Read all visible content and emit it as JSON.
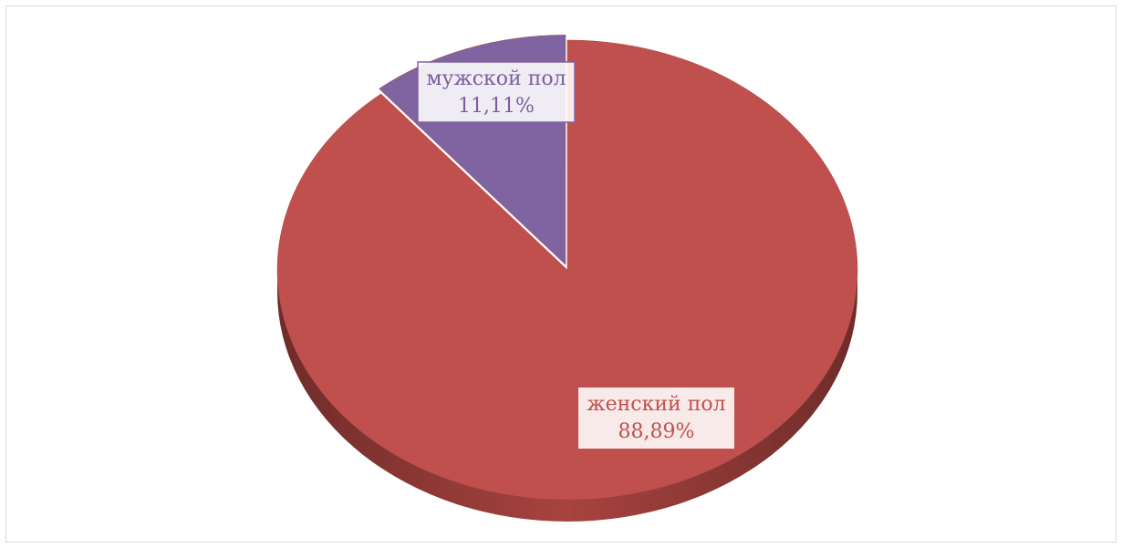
{
  "chart_data": {
    "type": "pie",
    "categories": [
      "женский пол",
      "мужской пол"
    ],
    "values": [
      88.89,
      11.11
    ],
    "value_labels": [
      "88,89%",
      "11,11%"
    ],
    "colors": [
      "#c0504d",
      "#8064a2"
    ]
  }
}
